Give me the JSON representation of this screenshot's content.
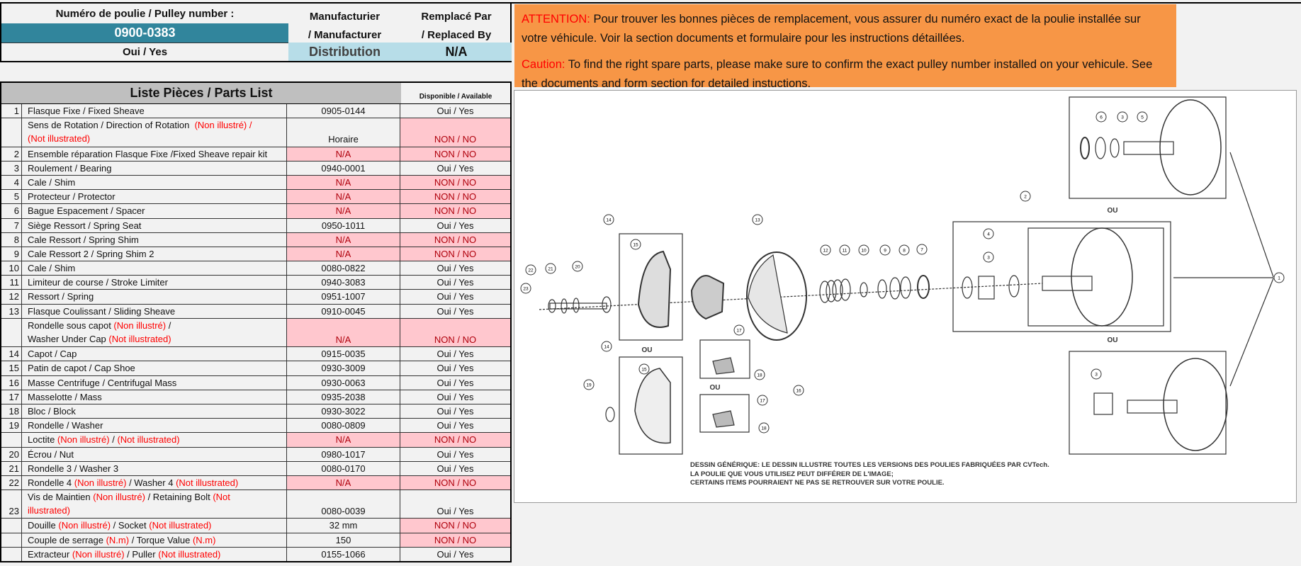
{
  "header": {
    "pulley_label": "Numéro de poulie / Pulley number :",
    "pulley_number": "0900-0383",
    "pulley_available": "Oui / Yes",
    "manufacturer_label_1": "Manufacturier",
    "manufacturer_label_2": "/ Manufacturer",
    "manufacturer_value": "Distribution",
    "replaced_label_1": "Remplacé Par",
    "replaced_label_2": "/ Replaced By",
    "replaced_value": "N/A"
  },
  "parts_list": {
    "title": "Liste Pièces / Parts List",
    "available_header": "Disponible / Available",
    "rows": [
      {
        "num": "1",
        "lines": [
          [
            {
              "t": "Flasque Fixe / Fixed Sheave"
            }
          ]
        ],
        "part": "0905-0144",
        "avail": "Oui / Yes"
      },
      {
        "num": "",
        "lines": [
          [
            {
              "t": "Sens de Rotation / Direction of Rotation  "
            },
            {
              "t": "(Non illustré) /",
              "red": true
            }
          ],
          [
            {
              "t": "(Not illustrated)",
              "red": true
            }
          ]
        ],
        "part": "Horaire",
        "avail": "NON / NO",
        "avail_bad": true
      },
      {
        "num": "2",
        "lines": [
          [
            {
              "t": "Ensemble réparation Flasque Fixe /Fixed Sheave repair kit"
            }
          ]
        ],
        "part": "N/A",
        "part_bad": true,
        "avail": "NON / NO",
        "avail_bad": true
      },
      {
        "num": "3",
        "lines": [
          [
            {
              "t": "Roulement / Bearing"
            }
          ]
        ],
        "part": "0940-0001",
        "avail": "Oui / Yes"
      },
      {
        "num": "4",
        "lines": [
          [
            {
              "t": "Cale / Shim"
            }
          ]
        ],
        "part": "N/A",
        "part_bad": true,
        "avail": "NON / NO",
        "avail_bad": true
      },
      {
        "num": "5",
        "lines": [
          [
            {
              "t": "Protecteur / Protector"
            }
          ]
        ],
        "part": "N/A",
        "part_bad": true,
        "avail": "NON / NO",
        "avail_bad": true
      },
      {
        "num": "6",
        "lines": [
          [
            {
              "t": "Bague Espacement / Spacer"
            }
          ]
        ],
        "part": "N/A",
        "part_bad": true,
        "avail": "NON / NO",
        "avail_bad": true
      },
      {
        "num": "7",
        "lines": [
          [
            {
              "t": "Siège Ressort / Spring Seat"
            }
          ]
        ],
        "part": "0950-1011",
        "avail": "Oui / Yes"
      },
      {
        "num": "8",
        "lines": [
          [
            {
              "t": "Cale Ressort / Spring Shim"
            }
          ]
        ],
        "part": "N/A",
        "part_bad": true,
        "avail": "NON / NO",
        "avail_bad": true
      },
      {
        "num": "9",
        "lines": [
          [
            {
              "t": "Cale Ressort 2 / Spring Shim 2"
            }
          ]
        ],
        "part": "N/A",
        "part_bad": true,
        "avail": "NON / NO",
        "avail_bad": true
      },
      {
        "num": "10",
        "lines": [
          [
            {
              "t": "Cale / Shim"
            }
          ]
        ],
        "part": "0080-0822",
        "avail": "Oui / Yes"
      },
      {
        "num": "11",
        "lines": [
          [
            {
              "t": "Limiteur de course / Stroke Limiter"
            }
          ]
        ],
        "part": "0940-3083",
        "avail": "Oui / Yes"
      },
      {
        "num": "12",
        "lines": [
          [
            {
              "t": "Ressort / Spring"
            }
          ]
        ],
        "part": "0951-1007",
        "avail": "Oui / Yes"
      },
      {
        "num": "13",
        "lines": [
          [
            {
              "t": "Flasque Coulissant / Sliding Sheave"
            }
          ]
        ],
        "part": "0910-0045",
        "avail": "Oui / Yes"
      },
      {
        "num": "",
        "lines": [
          [
            {
              "t": "Rondelle sous capot "
            },
            {
              "t": "(Non illustré)",
              "red": true
            },
            {
              "t": " /"
            }
          ],
          [
            {
              "t": "Washer Under Cap "
            },
            {
              "t": "(Not illustrated)",
              "red": true
            }
          ]
        ],
        "part": "N/A",
        "part_bad": true,
        "avail": "NON / NO",
        "avail_bad": true
      },
      {
        "num": "14",
        "lines": [
          [
            {
              "t": "Capot / Cap"
            }
          ]
        ],
        "part": "0915-0035",
        "avail": "Oui / Yes"
      },
      {
        "num": "15",
        "lines": [
          [
            {
              "t": "Patin de capot / Cap Shoe"
            }
          ]
        ],
        "part": "0930-3009",
        "avail": "Oui / Yes"
      },
      {
        "num": "16",
        "lines": [
          [
            {
              "t": "Masse Centrifuge / Centrifugal Mass"
            }
          ]
        ],
        "part": "0930-0063",
        "avail": "Oui / Yes"
      },
      {
        "num": "17",
        "lines": [
          [
            {
              "t": "Masselotte / Mass"
            }
          ]
        ],
        "part": "0935-2038",
        "avail": "Oui / Yes"
      },
      {
        "num": "18",
        "lines": [
          [
            {
              "t": "Bloc / Block"
            }
          ]
        ],
        "part": "0930-3022",
        "avail": "Oui / Yes"
      },
      {
        "num": "19",
        "lines": [
          [
            {
              "t": "Rondelle / Washer"
            }
          ]
        ],
        "part": "0080-0809",
        "avail": "Oui / Yes"
      },
      {
        "num": "",
        "lines": [
          [
            {
              "t": "Loctite "
            },
            {
              "t": "(Non illustré)",
              "red": true
            },
            {
              "t": " / "
            },
            {
              "t": "(Not illustrated)",
              "red": true
            }
          ]
        ],
        "part": "N/A",
        "part_bad": true,
        "avail": "NON / NO",
        "avail_bad": true
      },
      {
        "num": "20",
        "lines": [
          [
            {
              "t": "Écrou / Nut"
            }
          ]
        ],
        "part": "0980-1017",
        "avail": "Oui / Yes"
      },
      {
        "num": "21",
        "lines": [
          [
            {
              "t": "Rondelle 3 / Washer 3"
            }
          ]
        ],
        "part": "0080-0170",
        "avail": "Oui / Yes"
      },
      {
        "num": "22",
        "lines": [
          [
            {
              "t": "Rondelle 4 "
            },
            {
              "t": "(Non illustré)",
              "red": true
            },
            {
              "t": " / Washer 4 "
            },
            {
              "t": "(Not illustrated)",
              "red": true
            }
          ]
        ],
        "part": "N/A",
        "part_bad": true,
        "avail": "NON / NO",
        "avail_bad": true
      },
      {
        "num": "23",
        "lines": [
          [
            {
              "t": "Vis de Maintien "
            },
            {
              "t": "(Non illustré)",
              "red": true
            },
            {
              "t": " / Retaining Bolt "
            },
            {
              "t": "(Not",
              "red": true
            }
          ],
          [
            {
              "t": "illustrated)",
              "red": true
            }
          ]
        ],
        "part": "0080-0039",
        "avail": "Oui / Yes"
      },
      {
        "num": "",
        "lines": [
          [
            {
              "t": "Douille "
            },
            {
              "t": "(Non illustré)",
              "red": true
            },
            {
              "t": " / Socket "
            },
            {
              "t": "(Not illustrated)",
              "red": true
            }
          ]
        ],
        "part": "32 mm",
        "avail": "NON / NO",
        "avail_bad": true
      },
      {
        "num": "",
        "lines": [
          [
            {
              "t": "Couple de serrage "
            },
            {
              "t": "(N.m)",
              "red": true
            },
            {
              "t": " / Torque Value "
            },
            {
              "t": "(N.m)",
              "red": true
            }
          ]
        ],
        "part": "150",
        "avail": "NON / NO",
        "avail_bad": true
      },
      {
        "num": "",
        "lines": [
          [
            {
              "t": "Extracteur "
            },
            {
              "t": "(Non illustré)",
              "red": true
            },
            {
              "t": " / Puller "
            },
            {
              "t": "(Not illustrated)",
              "red": true
            }
          ]
        ],
        "part": "0155-1066",
        "avail": "Oui / Yes"
      }
    ]
  },
  "notice": {
    "fr_label": "ATTENTION:",
    "fr_text": " Pour trouver les bonnes pièces de remplacement, vous assurer du numéro exact de la poulie installée sur votre véhicule. Voir la section documents et formulaire pour les instructions détaillées.",
    "en_label": "Caution:",
    "en_text": " To find the right spare parts, please make sure to confirm the exact pulley number installed on your vehicule. See the documents and form section for detailed instuctions."
  },
  "diagram": {
    "callouts": [
      "6",
      "3",
      "5",
      "2",
      "14",
      "13",
      "15",
      "12",
      "11",
      "10",
      "9",
      "8",
      "7",
      "4",
      "3",
      "22",
      "21",
      "20",
      "23",
      "1",
      "17",
      "14",
      "15",
      "18",
      "19",
      "16",
      "17",
      "18",
      "3"
    ],
    "or_labels": [
      "OU",
      "OU",
      "OU",
      "OU"
    ],
    "caption": [
      "DESSIN GÉNÉRIQUE: LE DESSIN ILLUSTRE TOUTES LES VERSIONS DES POULIES FABRIQUÉES PAR CVTech.",
      "LA POULIE QUE VOUS UTILISEZ PEUT DIFFÉRER DE L'IMAGE;",
      "CERTAINS ITEMS POURRAIENT NE PAS SE RETROUVER SUR VOTRE POULIE."
    ]
  },
  "colors": {
    "teal": "#31859c",
    "light_blue": "#b7dde8",
    "notice_orange": "#f79646",
    "unavailable_fill": "#ffc7ce",
    "note_red": "#ff0000"
  }
}
